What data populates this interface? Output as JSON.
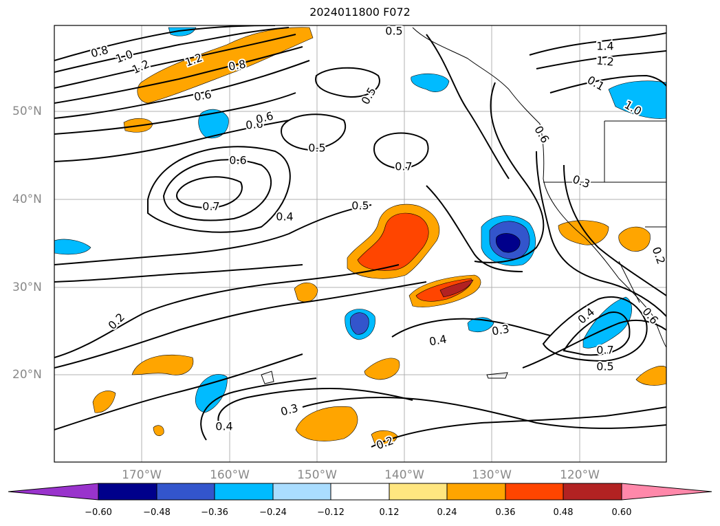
{
  "title": "2024011800 F072",
  "lat_labels": [
    "50°N",
    "40°N",
    "30°N",
    "20°N"
  ],
  "lon_labels": [
    "170°W",
    "160°W",
    "150°W",
    "140°W",
    "130°W",
    "120°W"
  ],
  "colorbar": {
    "ticks": [
      "−0.60",
      "−0.48",
      "−0.36",
      "−0.24",
      "−0.12",
      "0.12",
      "0.24",
      "0.36",
      "0.48",
      "0.60"
    ],
    "colors": [
      "#9933cc",
      "#00008b",
      "#3355cc",
      "#00bbff",
      "#aaddff",
      "#ffffff",
      "#ffe680",
      "#ffa500",
      "#ff4500",
      "#b22222",
      "#ff88aa"
    ]
  },
  "contour_labels": [
    "0.8",
    "1.0",
    "1.2",
    "1.2",
    "0.8",
    "0.6",
    "0.6",
    "0.5",
    "0.6",
    "0.5",
    "0.7",
    "0.6",
    "0.7",
    "0.5",
    "0.4",
    "0.2",
    "0.4",
    "0.3",
    "0.3",
    "0.4",
    "0.7",
    "0.5",
    "0.2",
    "1.4",
    "1.2",
    "0.1",
    "1.0",
    "0.3",
    "0.2",
    "0.6",
    "0.4",
    "0.6",
    "0.5"
  ]
}
